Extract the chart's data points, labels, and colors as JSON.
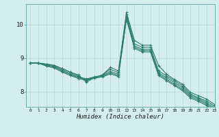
{
  "xlabel": "Humidex (Indice chaleur)",
  "bg_color": "#d4eeee",
  "line_color": "#2e7d6e",
  "grid_color": "#b8d8d8",
  "xlim": [
    -0.5,
    23
  ],
  "ylim": [
    7.55,
    10.6
  ],
  "xticks": [
    0,
    1,
    2,
    3,
    4,
    5,
    6,
    7,
    8,
    9,
    10,
    11,
    12,
    13,
    14,
    15,
    16,
    17,
    18,
    19,
    20,
    21,
    22,
    23
  ],
  "yticks": [
    8,
    9,
    10
  ],
  "series": [
    [
      8.85,
      8.85,
      8.82,
      8.78,
      8.68,
      8.58,
      8.5,
      8.28,
      8.42,
      8.5,
      8.72,
      8.62,
      10.35,
      9.52,
      9.38,
      9.38,
      8.78,
      8.52,
      8.36,
      8.22,
      7.98,
      7.88,
      7.78,
      7.62
    ],
    [
      8.85,
      8.85,
      8.82,
      8.78,
      8.68,
      8.58,
      8.47,
      8.33,
      8.42,
      8.5,
      8.66,
      8.57,
      10.3,
      9.42,
      9.32,
      9.32,
      8.62,
      8.47,
      8.32,
      8.17,
      7.93,
      7.82,
      7.72,
      7.57
    ],
    [
      8.85,
      8.85,
      8.8,
      8.75,
      8.64,
      8.54,
      8.44,
      8.38,
      8.44,
      8.48,
      8.6,
      8.52,
      10.22,
      9.36,
      9.26,
      9.26,
      8.56,
      8.42,
      8.27,
      8.12,
      7.89,
      7.79,
      7.67,
      7.52
    ],
    [
      8.85,
      8.85,
      8.78,
      8.73,
      8.61,
      8.51,
      8.42,
      8.36,
      8.42,
      8.46,
      8.56,
      8.48,
      10.18,
      9.32,
      9.22,
      9.22,
      8.52,
      8.37,
      8.22,
      8.07,
      7.85,
      7.75,
      7.63,
      7.48
    ],
    [
      8.85,
      8.85,
      8.76,
      8.7,
      8.58,
      8.48,
      8.39,
      8.34,
      8.4,
      8.44,
      8.53,
      8.45,
      10.15,
      9.28,
      9.18,
      9.18,
      8.48,
      8.33,
      8.18,
      8.03,
      7.81,
      7.71,
      7.59,
      7.44
    ]
  ],
  "x_values": [
    0,
    1,
    2,
    3,
    4,
    5,
    6,
    7,
    8,
    9,
    10,
    11,
    12,
    13,
    14,
    15,
    16,
    17,
    18,
    19,
    20,
    21,
    22,
    23
  ]
}
